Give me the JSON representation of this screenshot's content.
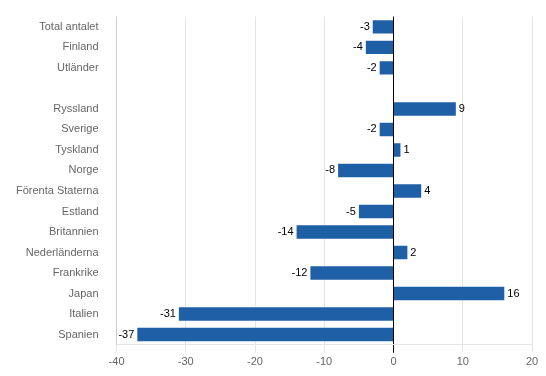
{
  "chart_data": {
    "type": "bar",
    "orientation": "horizontal",
    "categories": [
      "Spanien",
      "Italien",
      "Japan",
      "Frankrike",
      "Nederländerna",
      "Britannien",
      "Estland",
      "Förenta Staterna",
      "Norge",
      "Tyskland",
      "Sverige",
      "Ryssland",
      null,
      "Utländer",
      "Finland",
      "Total antalet"
    ],
    "values": [
      -37,
      -31,
      16,
      -12,
      2,
      -14,
      -5,
      4,
      -8,
      1,
      -2,
      9,
      null,
      -2,
      -4,
      -3
    ],
    "color": "#1F5FA6",
    "xlim": [
      -40,
      20
    ],
    "xticks": [
      -40,
      -30,
      -20,
      -10,
      0,
      10,
      20
    ],
    "grid": true,
    "data_labels": true
  }
}
